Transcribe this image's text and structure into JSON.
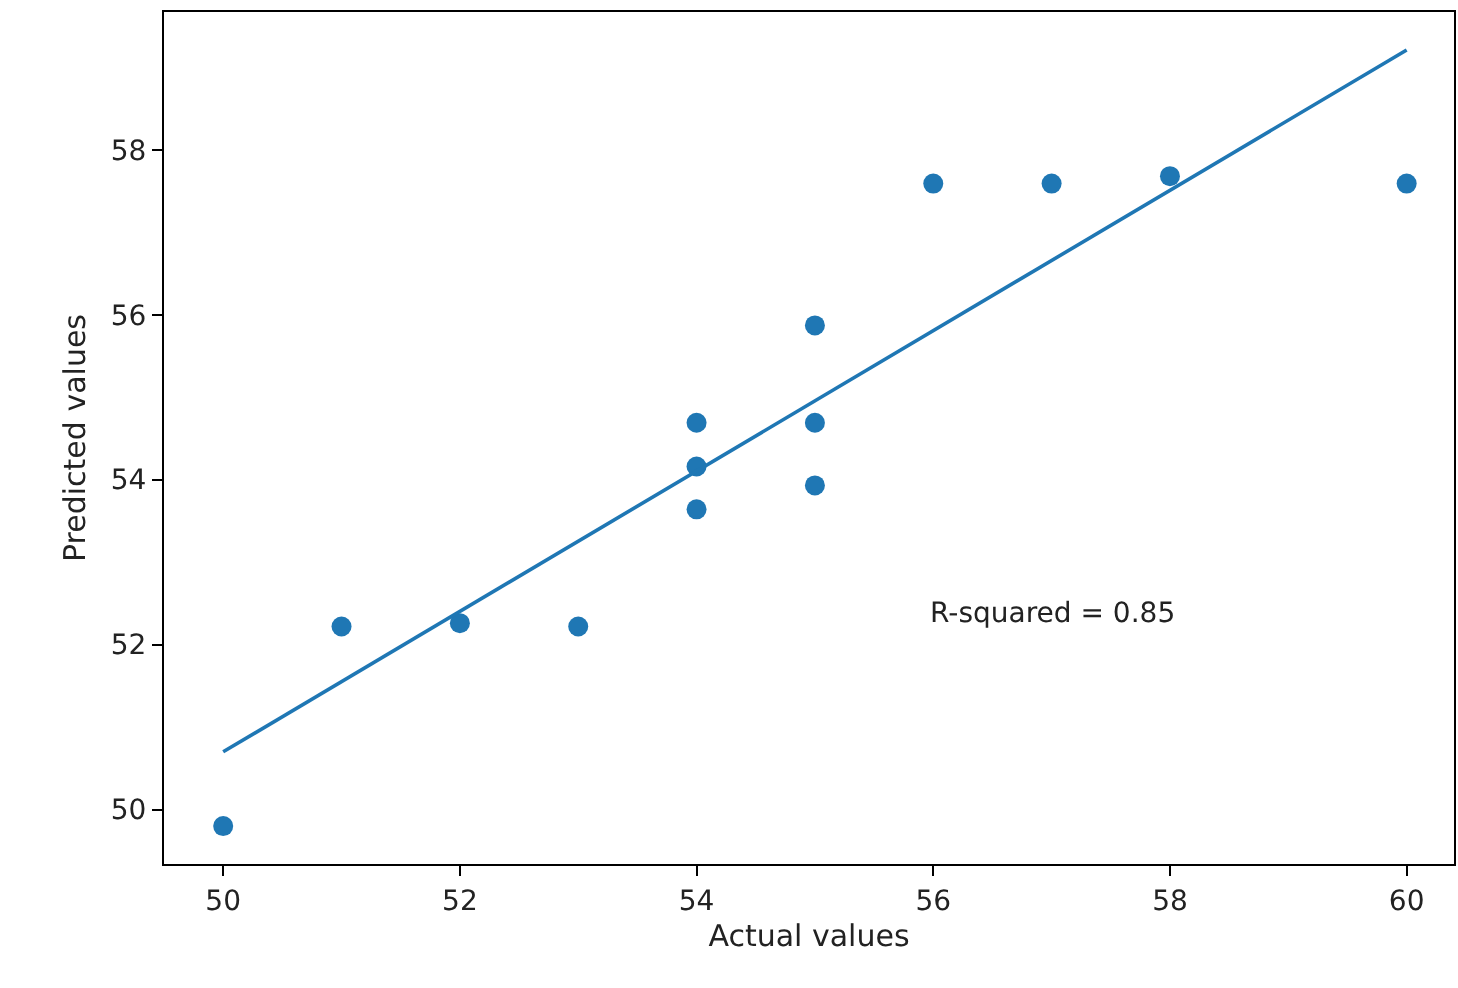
{
  "chart_data": {
    "type": "scatter",
    "xlabel": "Actual values",
    "ylabel": "Predicted values",
    "annotations": [
      "R-squared = 0.85"
    ],
    "series": [
      {
        "color": "#1f77b4",
        "marker": "circle",
        "x": [
          50,
          51,
          52,
          53,
          54,
          54,
          54,
          55,
          55,
          55,
          56,
          57,
          58,
          60
        ],
        "values": [
          49.8,
          52.22,
          52.26,
          52.22,
          54.69,
          54.16,
          53.64,
          55.87,
          54.69,
          53.93,
          57.59,
          57.59,
          57.68,
          57.59
        ]
      },
      {
        "type": "line",
        "color": "#1f77b4",
        "marker": "none",
        "x": [
          50,
          60
        ],
        "values": [
          50.7,
          59.21
        ]
      }
    ],
    "xlim": [
      49.5,
      60.4
    ],
    "ylim": [
      49.34,
      59.67
    ],
    "xticks": [
      50,
      52,
      54,
      56,
      58,
      60
    ],
    "yticks": [
      50,
      52,
      54,
      56,
      58
    ]
  }
}
